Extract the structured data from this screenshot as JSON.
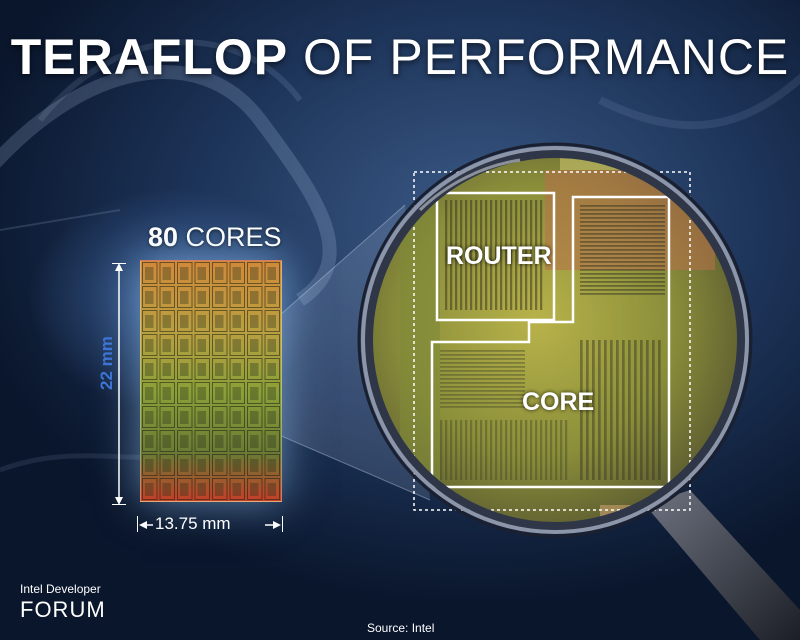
{
  "title": {
    "bold": "TERAFLOP",
    "light": " OF PERFORMANCE"
  },
  "die": {
    "core_count": "80",
    "core_word": " CORES",
    "height_label": "22 mm",
    "width_label": "13.75 mm"
  },
  "zoom": {
    "router_label": "ROUTER",
    "core_label": "CORE"
  },
  "branding": {
    "line1": "Intel Developer",
    "line2": "FORUM"
  },
  "source": "Source: Intel",
  "colors": {
    "dimension_blue": "#3d74d6",
    "background_navy": "#1d3459",
    "title_white": "#ffffff"
  }
}
